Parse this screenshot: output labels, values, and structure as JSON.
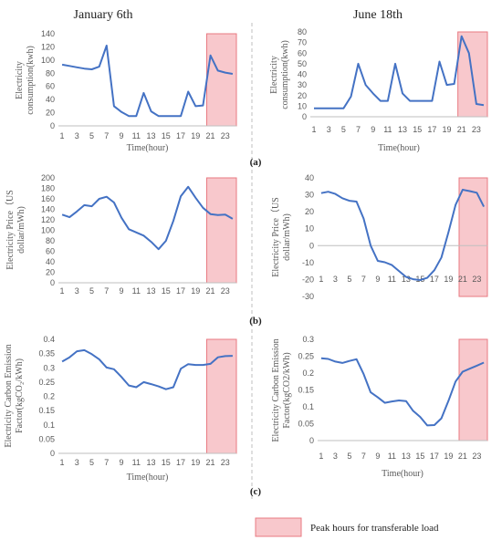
{
  "columns": {
    "left": "January 6th",
    "right": "June 18th"
  },
  "panel_labels": [
    "(a)",
    "(b)",
    "(c)"
  ],
  "legend": {
    "label": "Peak hours for transferable load",
    "color": "#f8c8cc",
    "border": "#e87a82"
  },
  "line_color": "#4472c4",
  "chart_data": [
    {
      "type": "line",
      "panel": "(a)",
      "column": "left",
      "xlabel": "Time(hour)",
      "ylabel": [
        "Electricity",
        "consumption(kwh)"
      ],
      "ylim": [
        0,
        140
      ],
      "yticks": [
        0,
        20,
        40,
        60,
        80,
        100,
        120,
        140
      ],
      "x": [
        1,
        2,
        3,
        4,
        5,
        6,
        7,
        8,
        9,
        10,
        11,
        12,
        13,
        14,
        15,
        16,
        17,
        18,
        19,
        20,
        21,
        22,
        23,
        24
      ],
      "xticks": [
        1,
        3,
        5,
        7,
        9,
        11,
        13,
        15,
        17,
        19,
        21,
        23
      ],
      "values": [
        93,
        91,
        89,
        87,
        86,
        90,
        122,
        30,
        21,
        15,
        15,
        50,
        22,
        15,
        15,
        15,
        15,
        52,
        30,
        31,
        107,
        84,
        81,
        79
      ],
      "peak_hours": [
        21,
        24
      ]
    },
    {
      "type": "line",
      "panel": "(a)",
      "column": "right",
      "xlabel": "Time(hour)",
      "ylabel": [
        "Electricity",
        "consumption(kwh)"
      ],
      "ylim": [
        0,
        80
      ],
      "yticks": [
        0,
        10,
        20,
        30,
        40,
        50,
        60,
        70,
        80
      ],
      "x": [
        1,
        2,
        3,
        4,
        5,
        6,
        7,
        8,
        9,
        10,
        11,
        12,
        13,
        14,
        15,
        16,
        17,
        18,
        19,
        20,
        21,
        22,
        23,
        24
      ],
      "xticks": [
        1,
        3,
        5,
        7,
        9,
        11,
        13,
        15,
        17,
        19,
        21,
        23
      ],
      "values": [
        8,
        8,
        8,
        8,
        8,
        19,
        50,
        30,
        22,
        15,
        15,
        50,
        22,
        15,
        15,
        15,
        15,
        52,
        30,
        31,
        76,
        60,
        12,
        11
      ],
      "peak_hours": [
        21,
        24
      ]
    },
    {
      "type": "line",
      "panel": "(b)",
      "column": "left",
      "xlabel": "",
      "ylabel": [
        "Electricity Price（US",
        "dollar/mWh)"
      ],
      "ylim": [
        0,
        200
      ],
      "yticks": [
        0,
        20,
        40,
        60,
        80,
        100,
        120,
        140,
        160,
        180,
        200
      ],
      "x": [
        1,
        2,
        3,
        4,
        5,
        6,
        7,
        8,
        9,
        10,
        11,
        12,
        13,
        14,
        15,
        16,
        17,
        18,
        19,
        20,
        21,
        22,
        23,
        24
      ],
      "xticks": [
        1,
        3,
        5,
        7,
        9,
        11,
        13,
        15,
        17,
        19,
        21,
        23
      ],
      "values": [
        130,
        125,
        136,
        148,
        146,
        160,
        164,
        153,
        124,
        102,
        96,
        90,
        78,
        64,
        80,
        118,
        165,
        183,
        162,
        143,
        131,
        129,
        130,
        122
      ],
      "peak_hours": [
        21,
        24
      ]
    },
    {
      "type": "line",
      "panel": "(b)",
      "column": "right",
      "xlabel": "",
      "ylabel": [
        "Electricity Price（US",
        "dollar/mWh)"
      ],
      "ylim": [
        -30,
        40
      ],
      "yticks": [
        -30,
        -20,
        -10,
        0,
        10,
        20,
        30,
        40
      ],
      "x": [
        1,
        2,
        3,
        4,
        5,
        6,
        7,
        8,
        9,
        10,
        11,
        12,
        13,
        14,
        15,
        16,
        17,
        18,
        19,
        20,
        21,
        22,
        23,
        24
      ],
      "xticks": [
        1,
        3,
        5,
        7,
        9,
        11,
        13,
        15,
        17,
        19,
        21,
        23
      ],
      "values": [
        31,
        31.8,
        30.5,
        28,
        26.5,
        26,
        16,
        0,
        -9,
        -9.8,
        -11.5,
        -15,
        -18.5,
        -19.8,
        -20.3,
        -19,
        -14.5,
        -7,
        8,
        24,
        33,
        32.2,
        31.2,
        23
      ],
      "peak_hours": [
        21,
        24
      ]
    },
    {
      "type": "line",
      "panel": "(c)",
      "column": "left",
      "xlabel": "Time(hour)",
      "ylabel": [
        "Electricity Carbon Emission",
        "Factor(kgCO₂/kWh)"
      ],
      "ylim": [
        0,
        0.4
      ],
      "yticks": [
        0,
        0.05,
        0.1,
        0.15,
        0.2,
        0.25,
        0.3,
        0.35,
        0.4
      ],
      "x": [
        1,
        2,
        3,
        4,
        5,
        6,
        7,
        8,
        9,
        10,
        11,
        12,
        13,
        14,
        15,
        16,
        17,
        18,
        19,
        20,
        21,
        22,
        23,
        24
      ],
      "xticks": [
        1,
        3,
        5,
        7,
        9,
        11,
        13,
        15,
        17,
        19,
        21,
        23
      ],
      "values": [
        0.322,
        0.337,
        0.358,
        0.362,
        0.348,
        0.33,
        0.301,
        0.295,
        0.268,
        0.238,
        0.232,
        0.25,
        0.243,
        0.235,
        0.225,
        0.232,
        0.297,
        0.313,
        0.31,
        0.31,
        0.314,
        0.337,
        0.341,
        0.342
      ],
      "peak_hours": [
        21,
        24
      ]
    },
    {
      "type": "line",
      "panel": "(c)",
      "column": "right",
      "xlabel": "Time(hour)",
      "ylabel": [
        "Electricity Carbon Emission",
        "Factor(kgCO2/kWh)"
      ],
      "ylim": [
        0,
        0.3
      ],
      "yticks": [
        0,
        0.05,
        0.1,
        0.15,
        0.2,
        0.25,
        0.3
      ],
      "x": [
        1,
        2,
        3,
        4,
        5,
        6,
        7,
        8,
        9,
        10,
        11,
        12,
        13,
        14,
        15,
        16,
        17,
        18,
        19,
        20,
        21,
        22,
        23,
        24
      ],
      "xticks": [
        1,
        3,
        5,
        7,
        9,
        11,
        13,
        15,
        17,
        19,
        21,
        23
      ],
      "values": [
        0.244,
        0.242,
        0.234,
        0.23,
        0.236,
        0.241,
        0.197,
        0.143,
        0.128,
        0.112,
        0.116,
        0.119,
        0.117,
        0.088,
        0.07,
        0.045,
        0.046,
        0.066,
        0.118,
        0.175,
        0.204,
        0.213,
        0.222,
        0.231
      ],
      "peak_hours": [
        21,
        24
      ]
    }
  ]
}
